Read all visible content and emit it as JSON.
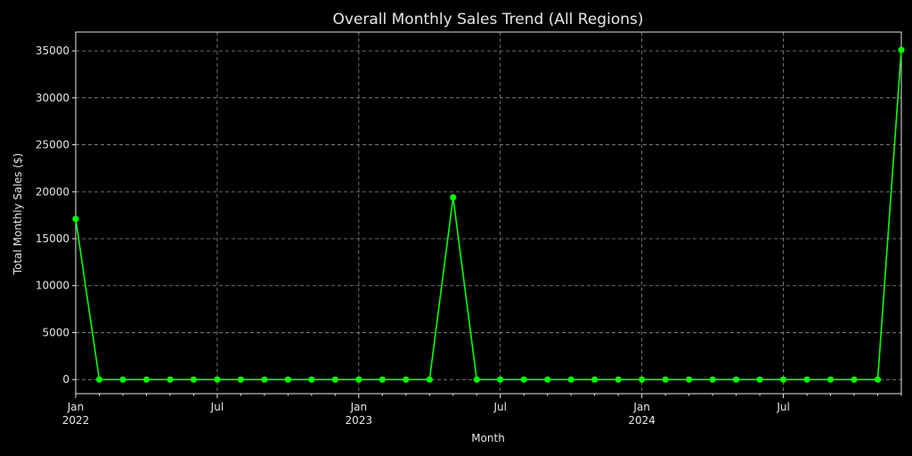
{
  "chart_data": {
    "type": "line",
    "title": "Overall Monthly Sales Trend (All Regions)",
    "xlabel": "Month",
    "ylabel": "Total Monthly Sales ($)",
    "ylim": [
      -1500,
      37000
    ],
    "xlim": [
      "2022-01",
      "2024-12"
    ],
    "grid": true,
    "line_color": "#00ff00",
    "x": [
      "2022-01",
      "2022-02",
      "2022-03",
      "2022-04",
      "2022-05",
      "2022-06",
      "2022-07",
      "2022-08",
      "2022-09",
      "2022-10",
      "2022-11",
      "2022-12",
      "2023-01",
      "2023-02",
      "2023-03",
      "2023-04",
      "2023-05",
      "2023-06",
      "2023-07",
      "2023-08",
      "2023-09",
      "2023-10",
      "2023-11",
      "2023-12",
      "2024-01",
      "2024-02",
      "2024-03",
      "2024-04",
      "2024-05",
      "2024-06",
      "2024-07",
      "2024-08",
      "2024-09",
      "2024-10",
      "2024-11",
      "2024-12"
    ],
    "series": [
      {
        "values": [
          17100,
          0,
          0,
          0,
          0,
          0,
          0,
          0,
          0,
          0,
          0,
          0,
          0,
          0,
          0,
          0,
          19400,
          0,
          0,
          0,
          0,
          0,
          0,
          0,
          0,
          0,
          0,
          0,
          0,
          0,
          0,
          0,
          0,
          0,
          0,
          35100
        ]
      }
    ],
    "y_ticks": [
      0,
      5000,
      10000,
      15000,
      20000,
      25000,
      30000,
      35000
    ],
    "x_ticks": [
      {
        "month": "2022-01",
        "label": "Jan",
        "year": "2022"
      },
      {
        "month": "2022-07",
        "label": "Jul",
        "year": ""
      },
      {
        "month": "2023-01",
        "label": "Jan",
        "year": "2023"
      },
      {
        "month": "2023-07",
        "label": "Jul",
        "year": ""
      },
      {
        "month": "2024-01",
        "label": "Jan",
        "year": "2024"
      },
      {
        "month": "2024-07",
        "label": "Jul",
        "year": ""
      }
    ]
  }
}
